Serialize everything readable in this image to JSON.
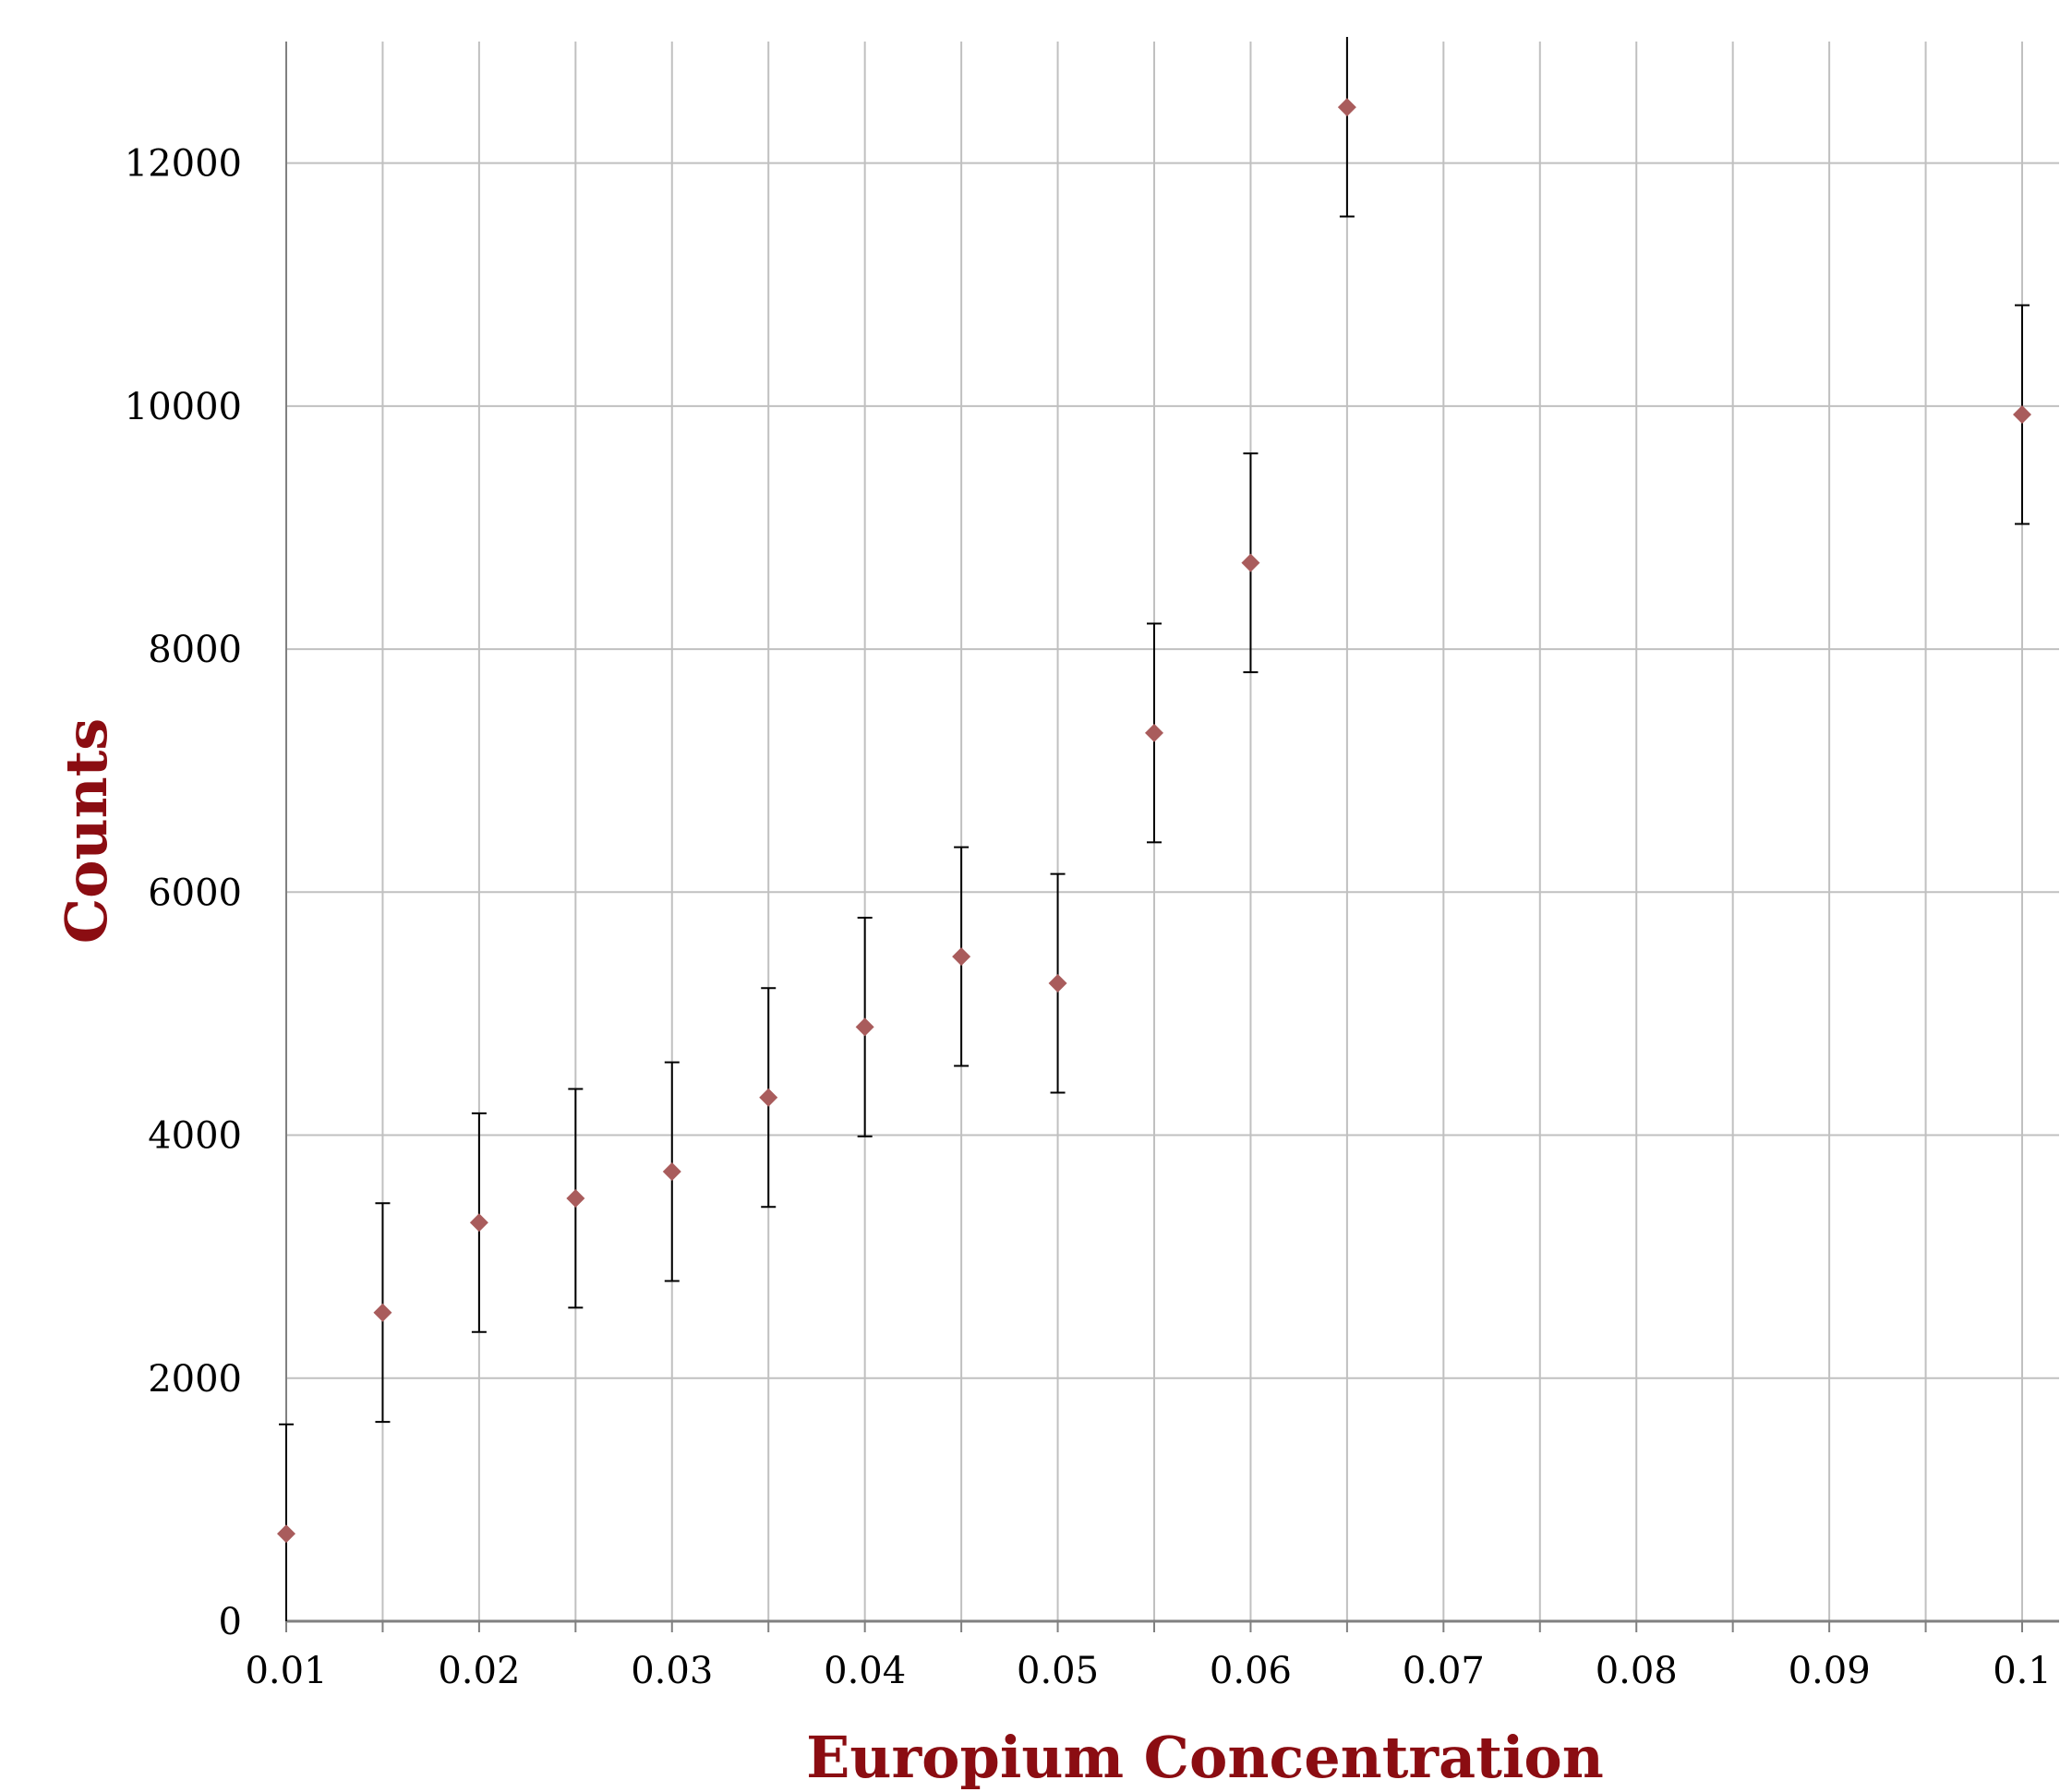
{
  "chart_data": {
    "type": "scatter",
    "title": "",
    "xlabel": "Europium Concentration",
    "ylabel": "Counts",
    "xlim": [
      0.01,
      0.1
    ],
    "ylim": [
      0,
      13000
    ],
    "x_ticks": [
      "0.01",
      "0.02",
      "0.03",
      "0.04",
      "0.05",
      "0.06",
      "0.07",
      "0.08",
      "0.09",
      "0.1"
    ],
    "y_ticks": [
      "0",
      "2000",
      "4000",
      "6000",
      "8000",
      "10000",
      "12000"
    ],
    "grid": true,
    "legend": "none",
    "colors": {
      "marker": "#a95c5c",
      "errorbar": "#000000",
      "title": "#8b0d12",
      "grid": "#c0c0c0"
    },
    "series": [
      {
        "x": [
          0.01,
          0.015,
          0.02,
          0.025,
          0.03,
          0.035,
          0.04,
          0.045,
          0.05,
          0.055,
          0.06,
          0.065,
          0.1
        ],
        "y": [
          720,
          2540,
          3280,
          3480,
          3700,
          4310,
          4890,
          5470,
          5250,
          7310,
          8710,
          12460,
          9930
        ],
        "error": [
          900,
          900,
          900,
          900,
          900,
          900,
          900,
          900,
          900,
          900,
          900,
          900,
          900
        ]
      }
    ]
  }
}
